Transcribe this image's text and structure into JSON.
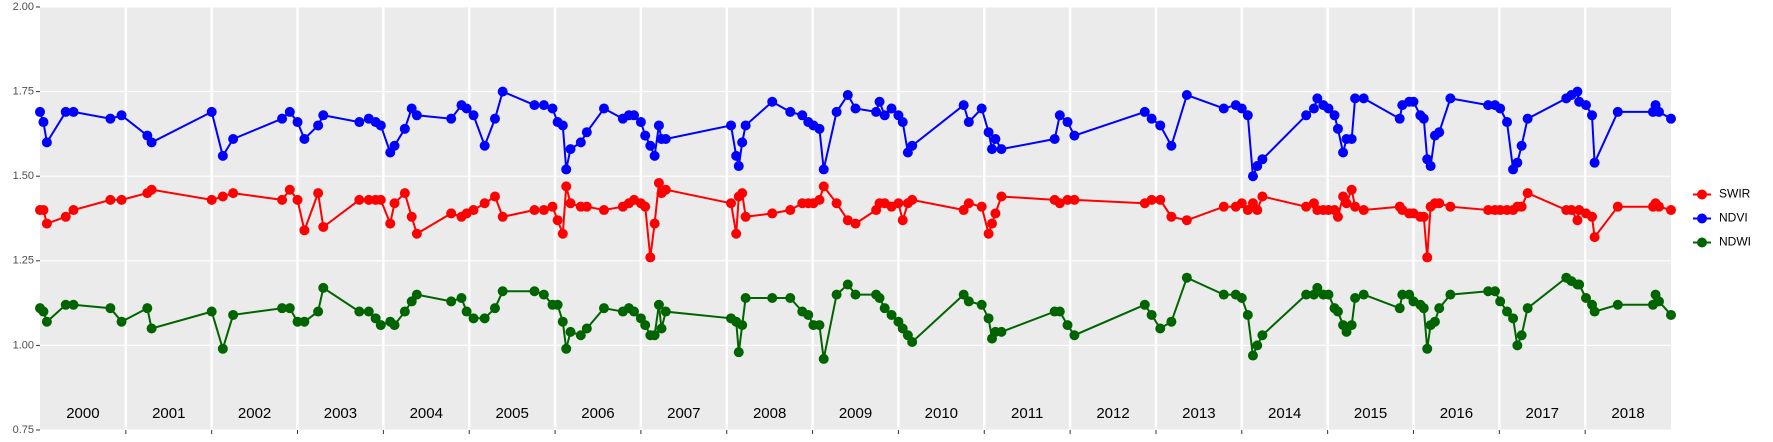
{
  "chart_data": {
    "type": "line",
    "x": [
      2000.0,
      2000.04,
      2000.08,
      2000.3,
      2000.39,
      2000.82,
      2000.95,
      2001.25,
      2001.3,
      2002.0,
      2002.13,
      2002.25,
      2002.82,
      2002.91,
      2003.0,
      2003.08,
      2003.24,
      2003.3,
      2003.72,
      2003.83,
      2003.91,
      2003.97,
      2004.08,
      2004.13,
      2004.25,
      2004.33,
      2004.39,
      2004.79,
      2004.91,
      2004.97,
      2005.05,
      2005.18,
      2005.3,
      2005.39,
      2005.76,
      2005.87,
      2005.97,
      2006.03,
      2006.09,
      2006.13,
      2006.18,
      2006.3,
      2006.37,
      2006.57,
      2006.79,
      2006.86,
      2006.92,
      2007.0,
      2007.05,
      2007.11,
      2007.16,
      2007.21,
      2007.24,
      2007.29,
      2008.05,
      2008.11,
      2008.14,
      2008.18,
      2008.22,
      2008.53,
      2008.74,
      2008.88,
      2008.95,
      2009.01,
      2009.08,
      2009.13,
      2009.28,
      2009.41,
      2009.5,
      2009.74,
      2009.78,
      2009.84,
      2009.92,
      2010.0,
      2010.05,
      2010.11,
      2010.16,
      2010.76,
      2010.82,
      2010.97,
      2011.05,
      2011.09,
      2011.13,
      2011.2,
      2011.82,
      2011.88,
      2011.97,
      2012.05,
      2012.87,
      2012.95,
      2013.05,
      2013.18,
      2013.36,
      2013.79,
      2013.93,
      2014.0,
      2014.07,
      2014.13,
      2014.18,
      2014.24,
      2014.75,
      2014.84,
      2014.88,
      2014.95,
      2015.01,
      2015.08,
      2015.12,
      2015.18,
      2015.22,
      2015.28,
      2015.32,
      2015.42,
      2015.84,
      2015.87,
      2015.95,
      2016.0,
      2016.08,
      2016.12,
      2016.16,
      2016.2,
      2016.25,
      2016.3,
      2016.43,
      2016.87,
      2016.95,
      2017.01,
      2017.09,
      2017.16,
      2017.21,
      2017.26,
      2017.33,
      2017.78,
      2017.84,
      2017.91,
      2017.93,
      2018.01,
      2018.08,
      2018.11,
      2018.38,
      2018.79,
      2018.82,
      2018.86,
      2019.0
    ],
    "series": [
      {
        "name": "SWIR",
        "color": "#ff0000",
        "values": [
          1.4,
          1.4,
          1.36,
          1.38,
          1.4,
          1.43,
          1.43,
          1.45,
          1.46,
          1.43,
          1.44,
          1.45,
          1.43,
          1.46,
          1.43,
          1.34,
          1.45,
          1.35,
          1.43,
          1.43,
          1.43,
          1.43,
          1.36,
          1.42,
          1.45,
          1.38,
          1.33,
          1.39,
          1.38,
          1.39,
          1.4,
          1.42,
          1.44,
          1.38,
          1.4,
          1.4,
          1.41,
          1.37,
          1.33,
          1.47,
          1.42,
          1.41,
          1.41,
          1.4,
          1.41,
          1.42,
          1.43,
          1.42,
          1.41,
          1.26,
          1.36,
          1.48,
          1.45,
          1.46,
          1.42,
          1.33,
          1.44,
          1.45,
          1.38,
          1.39,
          1.4,
          1.42,
          1.42,
          1.42,
          1.43,
          1.47,
          1.42,
          1.37,
          1.36,
          1.4,
          1.42,
          1.42,
          1.41,
          1.42,
          1.37,
          1.42,
          1.43,
          1.4,
          1.42,
          1.41,
          1.33,
          1.36,
          1.39,
          1.44,
          1.43,
          1.42,
          1.43,
          1.43,
          1.42,
          1.43,
          1.43,
          1.38,
          1.37,
          1.41,
          1.41,
          1.42,
          1.4,
          1.42,
          1.4,
          1.44,
          1.41,
          1.42,
          1.4,
          1.4,
          1.4,
          1.4,
          1.38,
          1.44,
          1.42,
          1.46,
          1.41,
          1.4,
          1.41,
          1.4,
          1.39,
          1.39,
          1.38,
          1.38,
          1.26,
          1.41,
          1.42,
          1.42,
          1.41,
          1.4,
          1.4,
          1.4,
          1.4,
          1.4,
          1.41,
          1.41,
          1.45,
          1.4,
          1.4,
          1.37,
          1.4,
          1.39,
          1.38,
          1.32,
          1.41,
          1.41,
          1.42,
          1.41,
          1.4
        ]
      },
      {
        "name": "NDVI",
        "color": "#0000ff",
        "values": [
          1.69,
          1.66,
          1.6,
          1.69,
          1.69,
          1.67,
          1.68,
          1.62,
          1.6,
          1.69,
          1.56,
          1.61,
          1.67,
          1.69,
          1.66,
          1.61,
          1.65,
          1.68,
          1.66,
          1.67,
          1.66,
          1.65,
          1.57,
          1.59,
          1.64,
          1.7,
          1.68,
          1.67,
          1.71,
          1.7,
          1.68,
          1.59,
          1.67,
          1.75,
          1.71,
          1.71,
          1.7,
          1.66,
          1.65,
          1.52,
          1.58,
          1.6,
          1.63,
          1.7,
          1.67,
          1.68,
          1.68,
          1.66,
          1.62,
          1.59,
          1.56,
          1.65,
          1.61,
          1.61,
          1.65,
          1.56,
          1.53,
          1.6,
          1.65,
          1.72,
          1.69,
          1.68,
          1.66,
          1.65,
          1.64,
          1.52,
          1.69,
          1.74,
          1.7,
          1.69,
          1.72,
          1.68,
          1.7,
          1.68,
          1.66,
          1.57,
          1.59,
          1.71,
          1.66,
          1.7,
          1.63,
          1.58,
          1.61,
          1.58,
          1.61,
          1.68,
          1.66,
          1.62,
          1.69,
          1.67,
          1.65,
          1.59,
          1.74,
          1.7,
          1.71,
          1.7,
          1.68,
          1.5,
          1.53,
          1.55,
          1.68,
          1.7,
          1.73,
          1.71,
          1.7,
          1.68,
          1.64,
          1.57,
          1.61,
          1.61,
          1.73,
          1.73,
          1.67,
          1.71,
          1.72,
          1.72,
          1.68,
          1.67,
          1.55,
          1.53,
          1.62,
          1.63,
          1.73,
          1.71,
          1.71,
          1.7,
          1.66,
          1.52,
          1.54,
          1.59,
          1.67,
          1.73,
          1.74,
          1.75,
          1.72,
          1.71,
          1.68,
          1.54,
          1.69,
          1.69,
          1.71,
          1.69,
          1.67
        ]
      },
      {
        "name": "NDWI",
        "color": "#006400",
        "values": [
          1.11,
          1.1,
          1.07,
          1.12,
          1.12,
          1.11,
          1.07,
          1.11,
          1.05,
          1.1,
          0.99,
          1.09,
          1.11,
          1.11,
          1.07,
          1.07,
          1.1,
          1.17,
          1.1,
          1.1,
          1.08,
          1.06,
          1.07,
          1.06,
          1.1,
          1.13,
          1.15,
          1.13,
          1.14,
          1.1,
          1.08,
          1.08,
          1.11,
          1.16,
          1.16,
          1.15,
          1.12,
          1.12,
          1.07,
          0.99,
          1.04,
          1.03,
          1.05,
          1.11,
          1.1,
          1.11,
          1.1,
          1.08,
          1.06,
          1.03,
          1.03,
          1.12,
          1.05,
          1.1,
          1.08,
          1.07,
          0.98,
          1.06,
          1.14,
          1.14,
          1.14,
          1.1,
          1.09,
          1.06,
          1.06,
          0.96,
          1.15,
          1.18,
          1.15,
          1.15,
          1.14,
          1.11,
          1.09,
          1.07,
          1.05,
          1.03,
          1.01,
          1.15,
          1.13,
          1.12,
          1.08,
          1.02,
          1.04,
          1.04,
          1.1,
          1.1,
          1.06,
          1.03,
          1.12,
          1.09,
          1.05,
          1.07,
          1.2,
          1.15,
          1.15,
          1.14,
          1.09,
          0.97,
          1.0,
          1.03,
          1.15,
          1.15,
          1.17,
          1.15,
          1.15,
          1.11,
          1.1,
          1.06,
          1.04,
          1.06,
          1.14,
          1.15,
          1.11,
          1.15,
          1.15,
          1.13,
          1.12,
          1.11,
          0.99,
          1.06,
          1.07,
          1.11,
          1.15,
          1.16,
          1.16,
          1.13,
          1.1,
          1.08,
          1.0,
          1.03,
          1.11,
          1.2,
          1.19,
          1.18,
          1.18,
          1.14,
          1.12,
          1.1,
          1.12,
          1.12,
          1.15,
          1.13,
          1.09
        ]
      }
    ],
    "xlim": [
      2000,
      2019
    ],
    "xgrid": [
      2001,
      2002,
      2003,
      2004,
      2005,
      2006,
      2007,
      2008,
      2009,
      2010,
      2011,
      2012,
      2013,
      2014,
      2015,
      2016,
      2017,
      2018
    ],
    "year_labels": [
      {
        "value": 2000.5,
        "label": "2000"
      },
      {
        "value": 2001.5,
        "label": "2001"
      },
      {
        "value": 2002.5,
        "label": "2002"
      },
      {
        "value": 2003.5,
        "label": "2003"
      },
      {
        "value": 2004.5,
        "label": "2004"
      },
      {
        "value": 2005.5,
        "label": "2005"
      },
      {
        "value": 2006.5,
        "label": "2006"
      },
      {
        "value": 2007.5,
        "label": "2007"
      },
      {
        "value": 2008.5,
        "label": "2008"
      },
      {
        "value": 2009.5,
        "label": "2009"
      },
      {
        "value": 2010.5,
        "label": "2010"
      },
      {
        "value": 2011.5,
        "label": "2011"
      },
      {
        "value": 2012.5,
        "label": "2012"
      },
      {
        "value": 2013.5,
        "label": "2013"
      },
      {
        "value": 2014.5,
        "label": "2014"
      },
      {
        "value": 2015.5,
        "label": "2015"
      },
      {
        "value": 2016.5,
        "label": "2016"
      },
      {
        "value": 2017.5,
        "label": "2017"
      },
      {
        "value": 2018.5,
        "label": "2018"
      }
    ],
    "ylim": [
      0.75,
      2.0
    ],
    "yticks": [
      {
        "value": 0.75,
        "label": "0.75"
      },
      {
        "value": 1.0,
        "label": "1.00"
      },
      {
        "value": 1.25,
        "label": "1.25"
      },
      {
        "value": 1.5,
        "label": "1.50"
      },
      {
        "value": 1.75,
        "label": "1.75"
      },
      {
        "value": 2.0,
        "label": "2.00"
      }
    ],
    "grid": true,
    "legend": "right"
  }
}
